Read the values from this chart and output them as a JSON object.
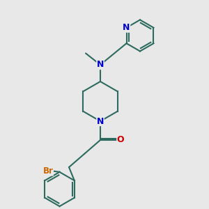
{
  "bg_color": "#e8e8e8",
  "bond_color": "#2d6b5e",
  "N_color": "#0000cc",
  "O_color": "#cc0000",
  "Br_color": "#cc6600",
  "line_width": 1.5,
  "figsize": [
    3.0,
    3.0
  ],
  "dpi": 100,
  "xlim": [
    0,
    10
  ],
  "ylim": [
    0,
    10
  ]
}
